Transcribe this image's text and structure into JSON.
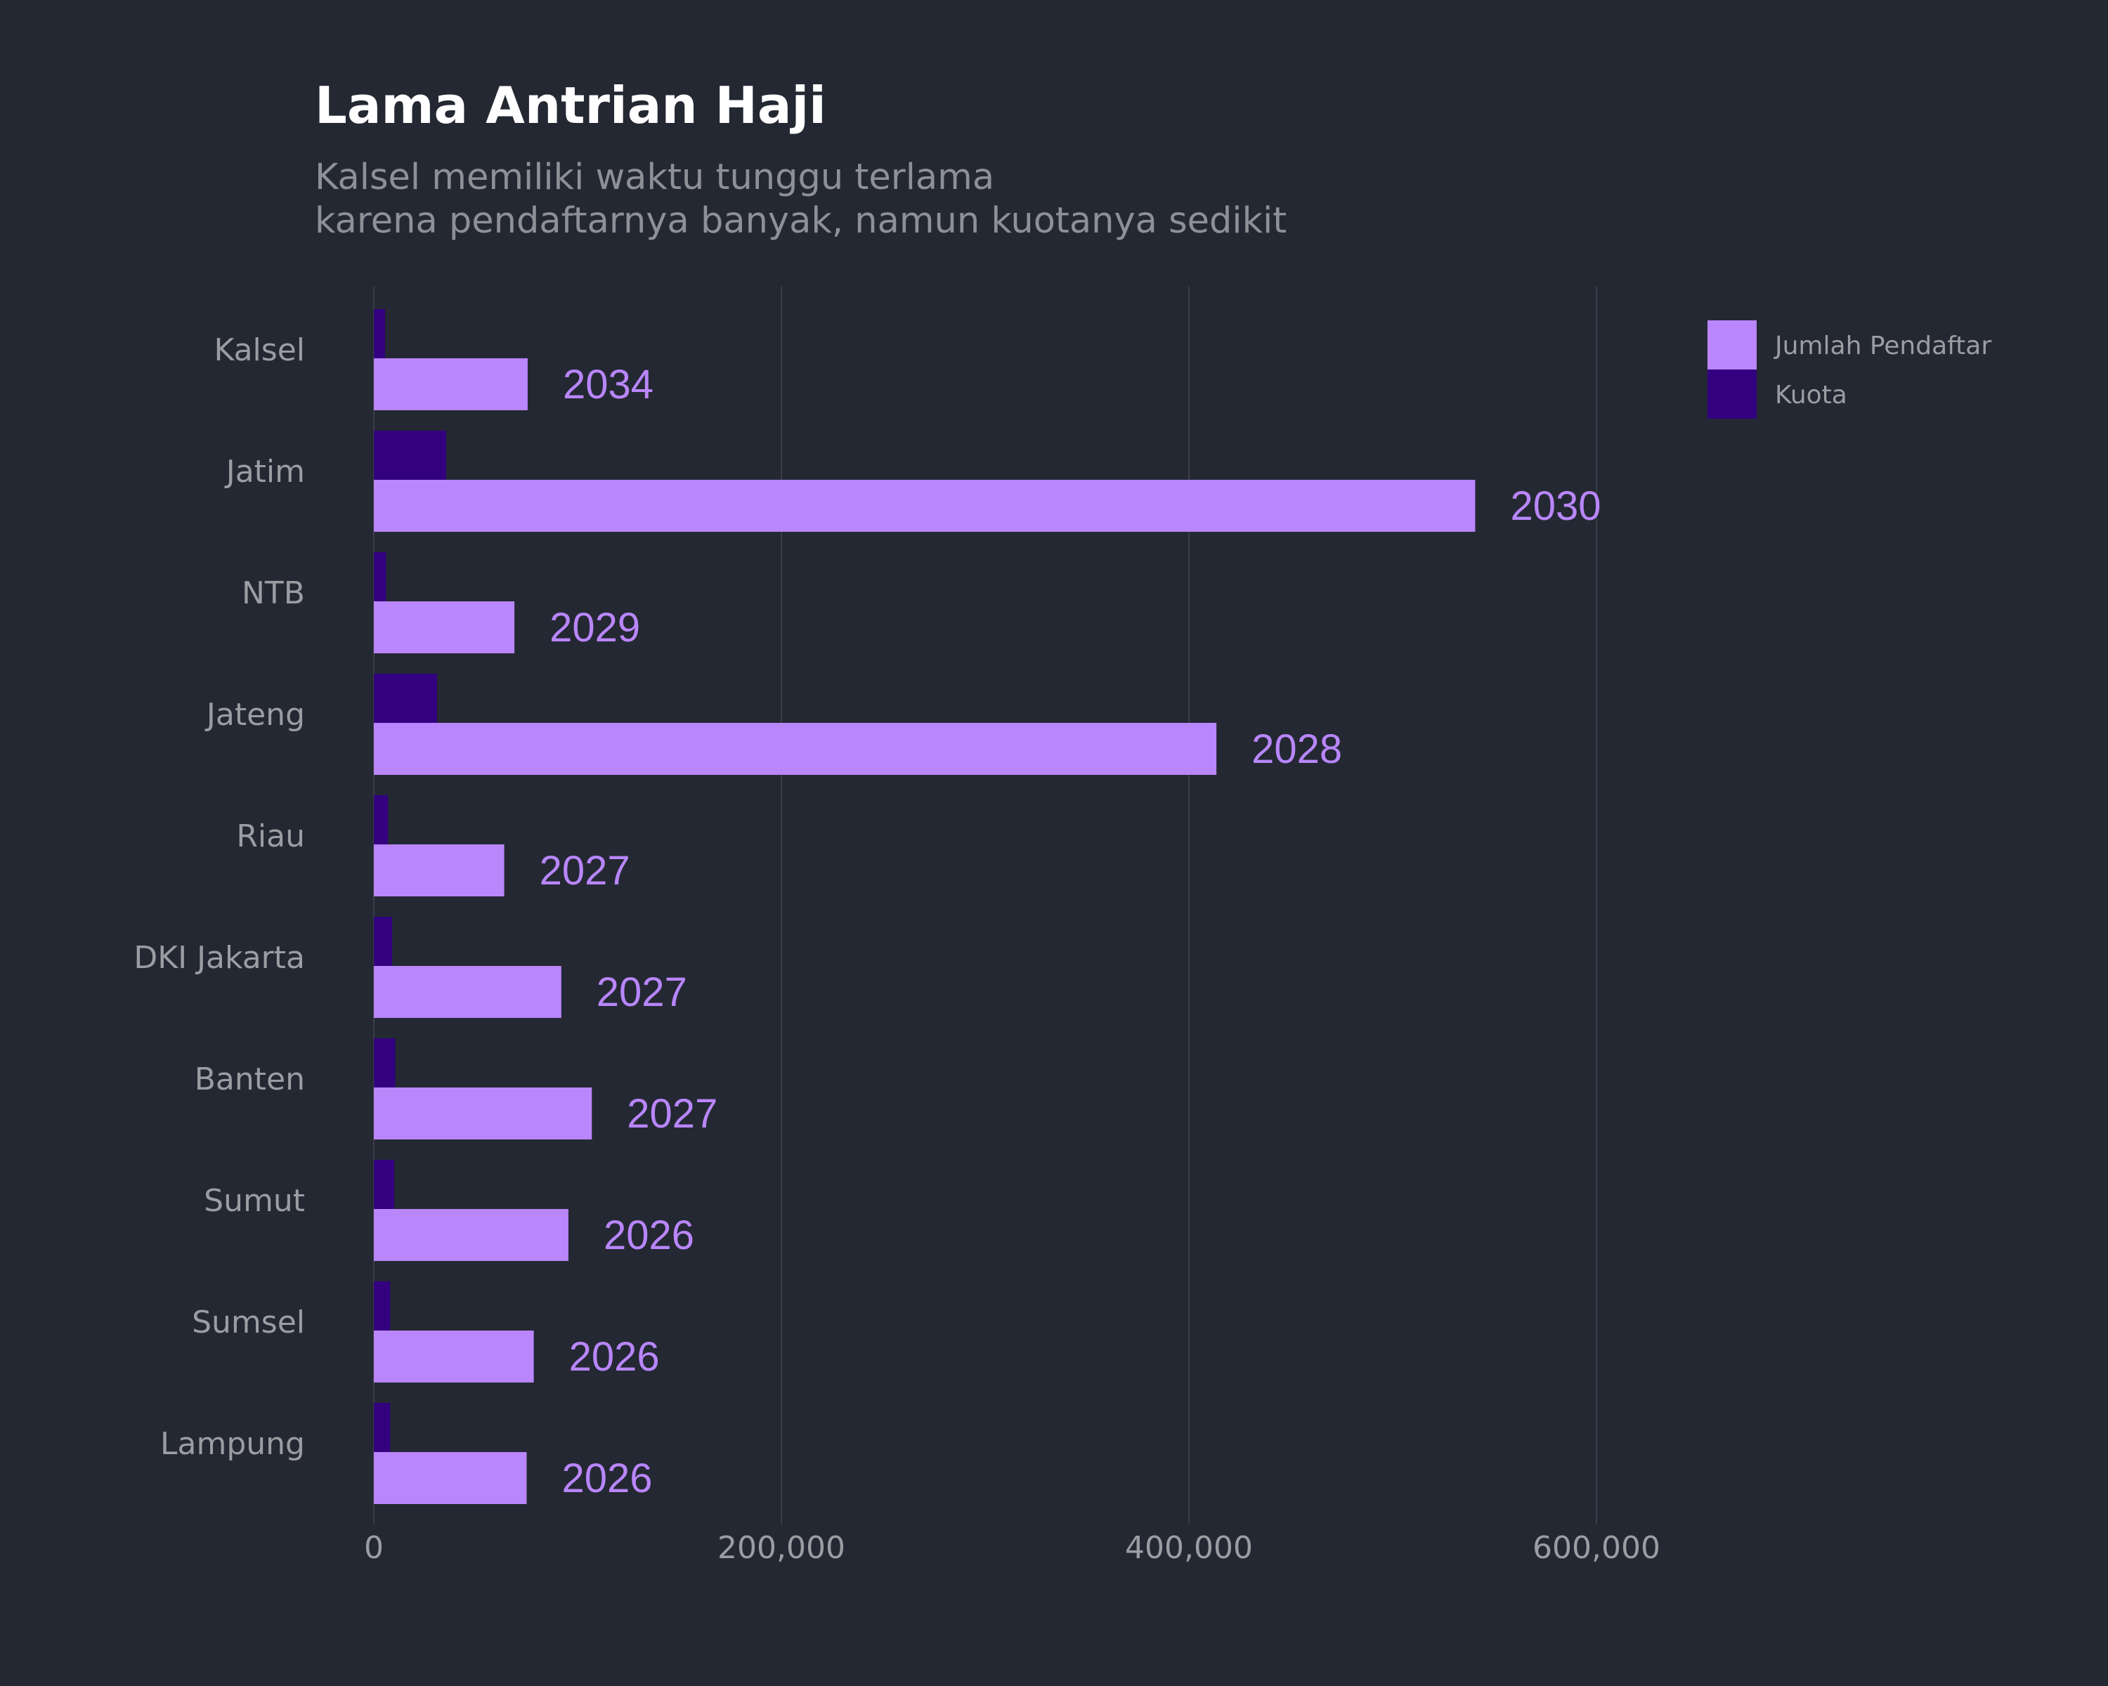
{
  "chart_data": {
    "type": "bar",
    "orientation": "horizontal",
    "title": "Lama Antrian Haji",
    "subtitle": [
      "Kalsel memiliki waktu tunggu terlama",
      "karena pendaftarnya banyak, namun kuotanya sedikit"
    ],
    "categories": [
      "Kalsel",
      "Jatim",
      "NTB",
      "Jateng",
      "Riau",
      "DKI Jakarta",
      "Banten",
      "Sumut",
      "Sumsel",
      "Lampung"
    ],
    "series": [
      {
        "name": "Jumlah Pendaftar",
        "color": "#b986fb",
        "values": [
          75500,
          540500,
          69000,
          413500,
          64000,
          92000,
          107000,
          95500,
          78500,
          75000
        ]
      },
      {
        "name": "Kuota",
        "color": "#330080",
        "values": [
          5500,
          35500,
          6000,
          31000,
          7000,
          9000,
          10500,
          10000,
          8000,
          8000
        ]
      }
    ],
    "data_labels": [
      "2034",
      "2030",
      "2029",
      "2028",
      "2027",
      "2027",
      "2027",
      "2026",
      "2026",
      "2026"
    ],
    "xlim": [
      0,
      800000
    ],
    "xticks": [
      0,
      200000,
      400000,
      600000
    ],
    "xtick_labels": [
      "0",
      "200,000",
      "400,000",
      "600,000"
    ],
    "xlabel": "",
    "ylabel": "",
    "grid": "vertical",
    "legend_position": "top-right",
    "colors": {
      "background": "#242833",
      "title": "#ffffff",
      "subtitle": "#8e9097",
      "grid": "#3a3e48",
      "axis_text": "#9b9da3"
    }
  }
}
